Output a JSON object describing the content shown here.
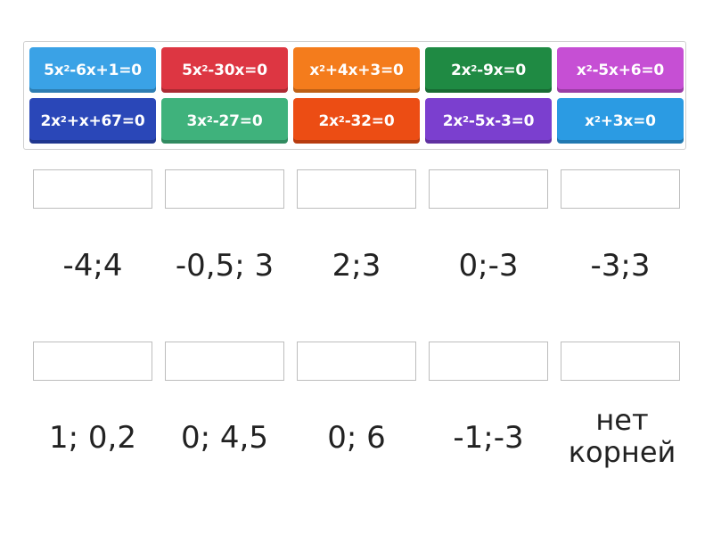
{
  "tiles": [
    {
      "parts": [
        "5x",
        "2",
        "-6x+1=0"
      ],
      "color": "#3aa2e6"
    },
    {
      "parts": [
        "5x",
        "2",
        "-30x=0"
      ],
      "color": "#dd3642"
    },
    {
      "parts": [
        "x",
        "2",
        "+4x+3=0"
      ],
      "color": "#f47c1c"
    },
    {
      "parts": [
        "2x",
        "2",
        "-9x=0"
      ],
      "color": "#1f8a43"
    },
    {
      "parts": [
        "x",
        "2",
        "-5x+6=0"
      ],
      "color": "#c64fd4"
    },
    {
      "parts": [
        "2x",
        "2",
        "+x+67=0"
      ],
      "color": "#2a47b8"
    },
    {
      "parts": [
        "3x",
        "2",
        "-27=0"
      ],
      "color": "#3fb27c"
    },
    {
      "parts": [
        "2x",
        "2",
        "-32=0"
      ],
      "color": "#ec4d14"
    },
    {
      "parts": [
        "2x",
        "2",
        "-5x-3=0"
      ],
      "color": "#7b3fcf"
    },
    {
      "parts": [
        "x",
        "2",
        "+3x=0"
      ],
      "color": "#2b9be3"
    }
  ],
  "answers_row1": [
    "-4;4",
    "-0,5; 3",
    "2;3",
    "0;-3",
    "-3;3"
  ],
  "answers_row2": [
    "1; 0,2",
    "0; 4,5",
    "0; 6",
    "-1;-3",
    "нет корней"
  ]
}
